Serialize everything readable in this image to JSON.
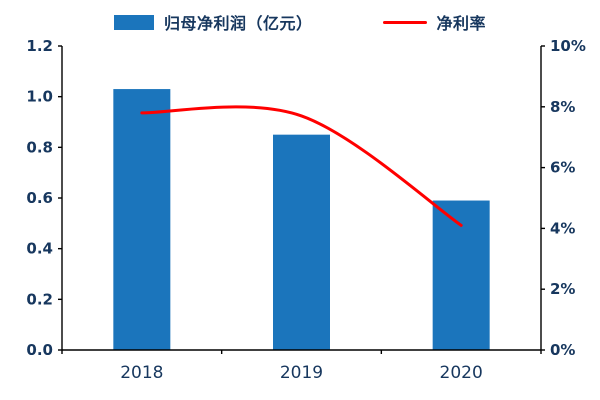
{
  "chart_data": {
    "type": "combo",
    "title": "",
    "categories": [
      "2018",
      "2019",
      "2020"
    ],
    "series": [
      {
        "name": "归母净利润（亿元）",
        "type": "bar",
        "axis": "left",
        "values": [
          1.03,
          0.85,
          0.59
        ],
        "color": "#1B75BC"
      },
      {
        "name": "净利率",
        "type": "line",
        "axis": "right",
        "values": [
          7.8,
          7.7,
          4.1
        ],
        "color": "#FF0000"
      }
    ],
    "y_left": {
      "min": 0,
      "max": 1.2,
      "tick_values": [
        0,
        0.2,
        0.4,
        0.6,
        0.8,
        1.0,
        1.2
      ],
      "tick_labels": [
        "0.0",
        "0.2",
        "0.4",
        "0.6",
        "0.8",
        "1.0",
        "1.2"
      ]
    },
    "y_right": {
      "min": 0,
      "max": 10,
      "tick_values": [
        0,
        2,
        4,
        6,
        8,
        10
      ],
      "tick_labels": [
        "0%",
        "2%",
        "4%",
        "6%",
        "8%",
        "10%"
      ]
    },
    "legend_position": "top",
    "grid": false
  },
  "colors": {
    "text": "#17375E",
    "axis": "#000000",
    "bar": "#1B75BC",
    "line": "#FF0000"
  }
}
